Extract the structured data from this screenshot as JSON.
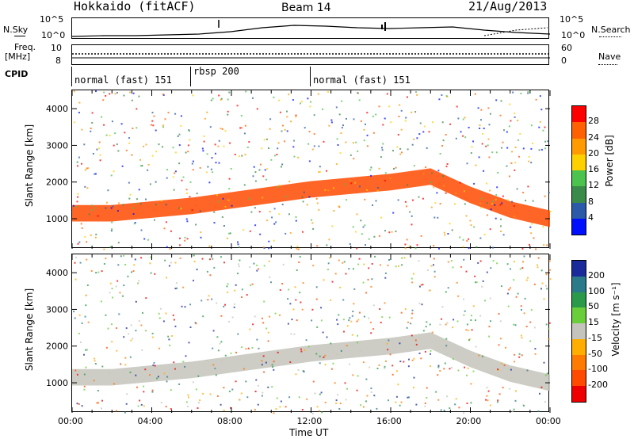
{
  "header": {
    "station": "Hokkaido (fitACF)",
    "beam": "Beam 14",
    "date": "21/Aug/2013"
  },
  "top_panels": {
    "nsky_label": "N.Sky",
    "nsearch_label": "N.Search",
    "noise_ticks": [
      "10^5",
      "10^0"
    ],
    "freq_label": "Freq.",
    "freq_unit": "[MHz]",
    "freq_ticks": [
      "10",
      "8"
    ],
    "nave_label": "Nave",
    "nave_ticks": [
      "60",
      "0"
    ],
    "cpid_label": "CPID",
    "cpid_segments": [
      {
        "label": "normal (fast) 151",
        "start_hour": 0,
        "end_hour": 6
      },
      {
        "label": "rbsp 200",
        "start_hour": 6,
        "end_hour": 12
      },
      {
        "label": "normal (fast) 151",
        "start_hour": 12,
        "end_hour": 24
      }
    ]
  },
  "chart_data": [
    {
      "type": "heatmap",
      "name": "power",
      "ylabel": "Slant Range [km]",
      "yticks": [
        1000,
        2000,
        3000,
        4000
      ],
      "ylim": [
        180,
        4500
      ],
      "xlim": [
        0,
        24
      ],
      "colorbar": {
        "label": "Power [dB]",
        "ticks": [
          "28",
          "24",
          "20",
          "16",
          "12",
          "8",
          "4"
        ],
        "colors": [
          "#ff0000",
          "#ff6000",
          "#ff9a00",
          "#ffd000",
          "#4cc34c",
          "#3a8a4a",
          "#2a5aa8",
          "#0010ff"
        ]
      },
      "bands": [
        {
          "x": [
            0,
            2,
            4,
            6,
            8,
            10,
            12,
            14,
            16,
            18,
            20,
            22,
            24
          ],
          "y": [
            1150,
            1150,
            1250,
            1350,
            1500,
            1650,
            1800,
            1900,
            2000,
            2150,
            1650,
            1250,
            1000
          ],
          "width": 450,
          "color": "#ff4a00"
        }
      ]
    },
    {
      "type": "heatmap",
      "name": "velocity",
      "ylabel": "Slant Range [km]",
      "yticks": [
        1000,
        2000,
        3000,
        4000
      ],
      "ylim": [
        180,
        4500
      ],
      "xlim": [
        0,
        24
      ],
      "xticks": [
        "00:00",
        "04:00",
        "08:00",
        "12:00",
        "16:00",
        "20:00",
        "00:00"
      ],
      "xlabel": "Time UT",
      "colorbar": {
        "label": "Velocity [m s⁻¹]",
        "ticks": [
          "200",
          "100",
          "50",
          "15",
          "-15",
          "-50",
          "-100",
          "-200"
        ],
        "colors": [
          "#1a2a9a",
          "#2a7a8a",
          "#2a9a4a",
          "#6acd3a",
          "#c4c4bc",
          "#ffae00",
          "#ff7a00",
          "#ff4a00",
          "#ee0000"
        ]
      }
    }
  ]
}
